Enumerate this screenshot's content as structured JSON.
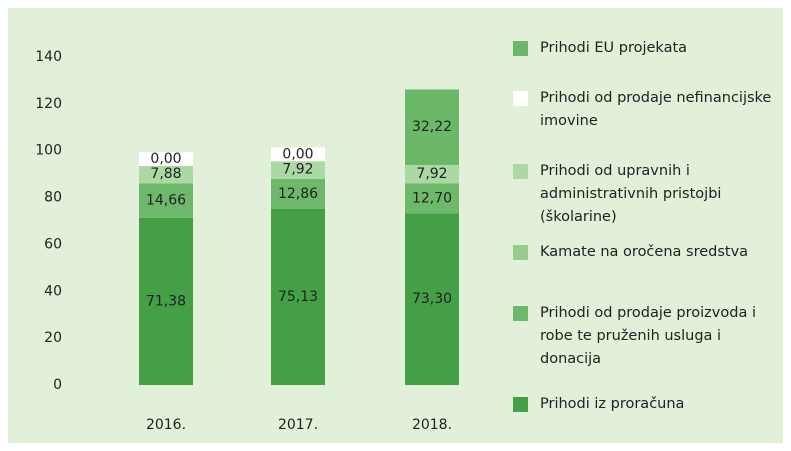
{
  "chart_data": {
    "type": "stacked_bar",
    "categories": [
      "2016.",
      "2017.",
      "2018."
    ],
    "ylim": [
      0,
      140
    ],
    "yticks": [
      0,
      20,
      40,
      60,
      80,
      100,
      120,
      140
    ],
    "series": [
      {
        "name": "Prihodi iz proračuna",
        "color": "#43a047",
        "values": [
          71.38,
          75.13,
          73.3
        ],
        "value_labels": [
          "71,38",
          "75,13",
          "73,30"
        ]
      },
      {
        "name": "Prihodi od prodaje proizvoda i robe te pruženih usluga i donacija",
        "color": "#6db86a",
        "values": [
          14.66,
          12.86,
          12.7
        ],
        "value_labels": [
          "14,66",
          "12,86",
          "12,70"
        ]
      },
      {
        "name": "Kamate na oročena sredstva",
        "color": "#97cc8f",
        "values": [
          0,
          0,
          0
        ]
      },
      {
        "name": "Prihodi od upravnih i administrativnih pristojbi (školarine)",
        "color": "#acd8a3",
        "values": [
          7.88,
          7.92,
          7.92
        ],
        "value_labels": [
          "7,88",
          "7,92",
          "7,92"
        ]
      },
      {
        "name": "Prihodi od prodaje nefinancijske imovine",
        "color": "#ffffff",
        "values": [
          0,
          0,
          0
        ],
        "value_labels": [
          "0,00",
          "0,00",
          null
        ]
      },
      {
        "name": "Prihodi EU projekata",
        "color": "#6ab868",
        "values": [
          0,
          0,
          32.22
        ],
        "value_labels": [
          null,
          null,
          "32,22"
        ]
      }
    ]
  }
}
